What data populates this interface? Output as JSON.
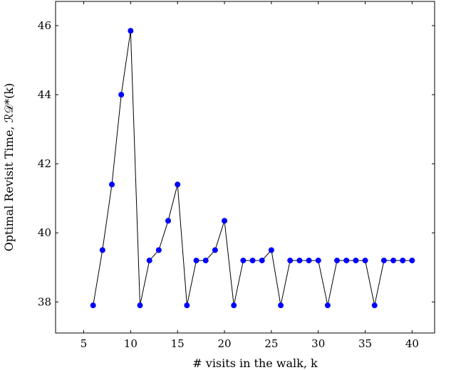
{
  "chart_data": {
    "type": "line",
    "title": "",
    "xlabel": "# visits in the walk, k",
    "ylabel": "Optimal Revisit Time, ℛ𝒟*(k)",
    "xlim": [
      2,
      42.4
    ],
    "ylim": [
      37.1,
      46.7
    ],
    "xticks": [
      5,
      10,
      15,
      20,
      25,
      30,
      35,
      40
    ],
    "yticks": [
      38,
      40,
      42,
      44,
      46
    ],
    "grid": false,
    "legend": "none",
    "marker_color": "#0000ff",
    "line_color": "#000000",
    "series": [
      {
        "x": [
          6,
          7,
          8,
          9,
          10,
          11,
          12,
          13,
          14,
          15,
          16,
          17,
          18,
          19,
          20,
          21,
          22,
          23,
          24,
          25,
          26,
          27,
          28,
          29,
          30,
          31,
          32,
          33,
          34,
          35,
          36,
          37,
          38,
          39,
          40
        ],
        "values": [
          37.9,
          39.5,
          41.4,
          44.0,
          45.85,
          37.9,
          39.2,
          39.5,
          40.35,
          41.4,
          37.9,
          39.2,
          39.2,
          39.5,
          40.35,
          37.9,
          39.2,
          39.2,
          39.2,
          39.5,
          37.9,
          39.2,
          39.2,
          39.2,
          39.2,
          37.9,
          39.2,
          39.2,
          39.2,
          39.2,
          37.9,
          39.2,
          39.2,
          39.2,
          39.2
        ]
      }
    ]
  }
}
